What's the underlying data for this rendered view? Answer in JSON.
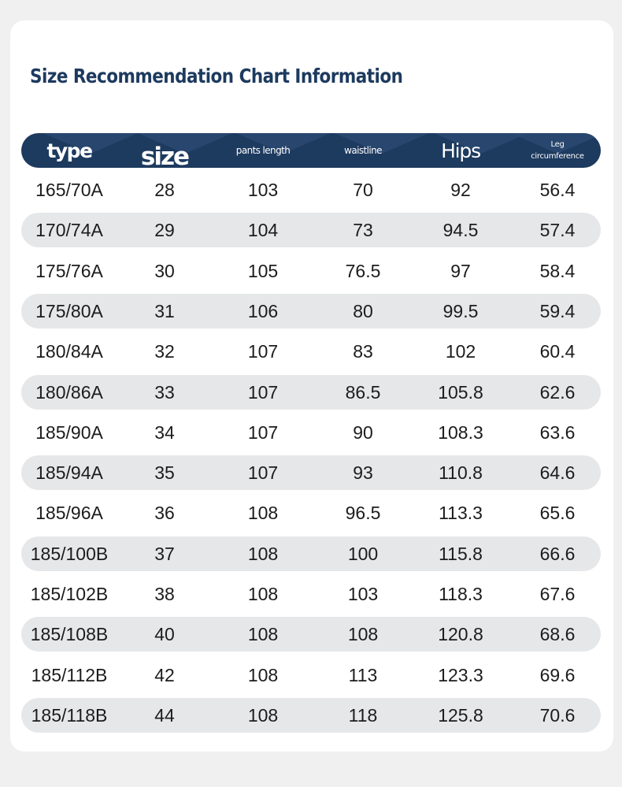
{
  "title": "Size Recommendation Chart Information",
  "colors": {
    "header_bg": "#1d3a5f",
    "title_color": "#1d3a5f",
    "alt_row_bg": "#e6e7e9",
    "card_bg": "#ffffff",
    "page_bg": "#f0f0f0"
  },
  "columns": {
    "type": "type",
    "size": "size",
    "pants_length": "pants length",
    "waistline": "waistline",
    "hips": "Hips",
    "leg_line1": "Leg",
    "leg_line2": "circumference"
  },
  "rows": [
    [
      "165/70A",
      "28",
      "103",
      "70",
      "92",
      "56.4"
    ],
    [
      "170/74A",
      "29",
      "104",
      "73",
      "94.5",
      "57.4"
    ],
    [
      "175/76A",
      "30",
      "105",
      "76.5",
      "97",
      "58.4"
    ],
    [
      "175/80A",
      "31",
      "106",
      "80",
      "99.5",
      "59.4"
    ],
    [
      "180/84A",
      "32",
      "107",
      "83",
      "102",
      "60.4"
    ],
    [
      "180/86A",
      "33",
      "107",
      "86.5",
      "105.8",
      "62.6"
    ],
    [
      "185/90A",
      "34",
      "107",
      "90",
      "108.3",
      "63.6"
    ],
    [
      "185/94A",
      "35",
      "107",
      "93",
      "110.8",
      "64.6"
    ],
    [
      "185/96A",
      "36",
      "108",
      "96.5",
      "113.3",
      "65.6"
    ],
    [
      "185/100B",
      "37",
      "108",
      "100",
      "115.8",
      "66.6"
    ],
    [
      "185/102B",
      "38",
      "108",
      "103",
      "118.3",
      "67.6"
    ],
    [
      "185/108B",
      "40",
      "108",
      "108",
      "120.8",
      "68.6"
    ],
    [
      "185/112B",
      "42",
      "108",
      "113",
      "123.3",
      "69.6"
    ],
    [
      "185/118B",
      "44",
      "108",
      "118",
      "125.8",
      "70.6"
    ]
  ]
}
